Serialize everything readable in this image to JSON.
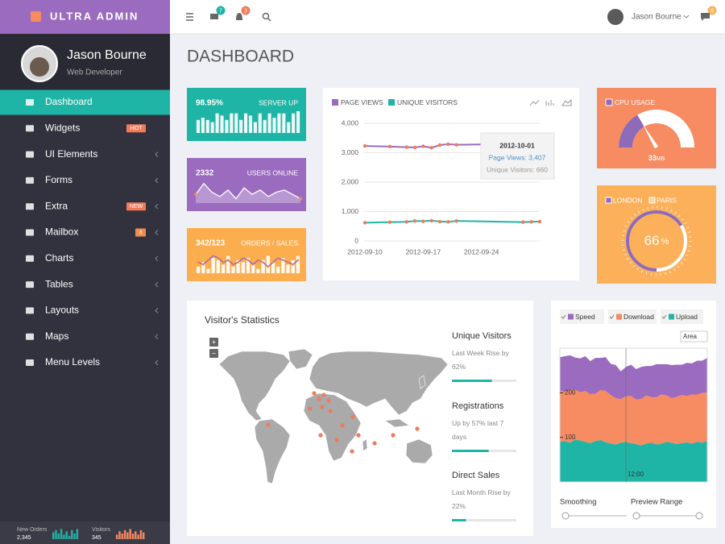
{
  "brand": "ULTRA ADMIN",
  "topbar": {
    "mail_badge": "7",
    "bell_badge": "3",
    "user": "Jason Bourne",
    "chat_badge": "8"
  },
  "profile": {
    "name": "Jason Bourne",
    "role": "Web Developer"
  },
  "menu": [
    {
      "label": "Dashboard",
      "active": true
    },
    {
      "label": "Widgets",
      "badge": "HOT"
    },
    {
      "label": "UI Elements",
      "submenu": true
    },
    {
      "label": "Forms",
      "submenu": true
    },
    {
      "label": "Extra",
      "badge": "NEW",
      "submenu": true
    },
    {
      "label": "Mailbox",
      "badge": "4",
      "submenu": true
    },
    {
      "label": "Charts",
      "submenu": true
    },
    {
      "label": "Tables",
      "submenu": true
    },
    {
      "label": "Layouts",
      "submenu": true
    },
    {
      "label": "Maps",
      "submenu": true
    },
    {
      "label": "Menu Levels",
      "submenu": true
    }
  ],
  "sidebar_footer": [
    {
      "label": "New Orders",
      "value": "2,345",
      "color": "#1fb5a6",
      "ylim": [
        0,
        10
      ],
      "bars": [
        6,
        8,
        5,
        9,
        4,
        7,
        3,
        8,
        5,
        9
      ]
    },
    {
      "label": "Visitors",
      "value": "345",
      "color": "#f78b62",
      "ylim": [
        0,
        10
      ],
      "bars": [
        4,
        7,
        5,
        8,
        6,
        9,
        5,
        7,
        4,
        8,
        6
      ]
    }
  ],
  "page_title": "DASHBOARD",
  "tiles": [
    {
      "value": "98.95%",
      "label": "SERVER UP",
      "color": "#1fb5a6",
      "spark": {
        "type": "bar",
        "ylim": [
          0,
          10
        ],
        "values": [
          6,
          7,
          6,
          5,
          9,
          8,
          6,
          9,
          9,
          6,
          9,
          8,
          5,
          9,
          6,
          9,
          7,
          9,
          9,
          5,
          9,
          10
        ]
      }
    },
    {
      "value": "2332",
      "label": "USERS ONLINE",
      "color": "#9b6bbf",
      "spark": {
        "type": "area",
        "ylim": [
          0,
          10
        ],
        "values": [
          4,
          9,
          5,
          3,
          6,
          2,
          7,
          4,
          6,
          3,
          5,
          6,
          4,
          2
        ]
      }
    },
    {
      "value": "342/123",
      "label": "ORDERS / SALES",
      "color": "#fcae4f",
      "spark": {
        "type": "bar-line",
        "ylim": [
          0,
          10
        ],
        "line_color": "#8e6bb8",
        "values": [
          3,
          5,
          2,
          7,
          6,
          4,
          8,
          3,
          6,
          5,
          7,
          4,
          2,
          6,
          8,
          5,
          3,
          7,
          4,
          6,
          8
        ],
        "line": [
          5,
          4,
          6,
          8,
          7,
          5,
          6,
          4,
          5,
          7,
          6,
          4,
          6,
          5,
          3,
          5,
          7,
          6,
          5,
          4,
          6
        ]
      }
    }
  ],
  "traffic_chart": {
    "type": "line",
    "x": [
      "2012-09-10",
      "2012-09-13",
      "2012-09-15",
      "2012-09-16",
      "2012-09-17",
      "2012-09-18",
      "2012-09-19",
      "2012-09-20",
      "2012-09-21",
      "2012-09-29",
      "2012-09-30",
      "2012-10-01"
    ],
    "series": [
      {
        "name": "PAGE VIEWS",
        "color": "#9b6bbf",
        "values": [
          3230,
          3210,
          3190,
          3180,
          3220,
          3170,
          3260,
          3290,
          3270,
          3300,
          3350,
          3407
        ]
      },
      {
        "name": "UNIQUE VISITORS",
        "color": "#1fb5a6",
        "values": [
          620,
          640,
          650,
          680,
          670,
          690,
          660,
          650,
          680,
          640,
          650,
          660
        ]
      }
    ],
    "point_color": "#f07b5b",
    "xlim": [
      "2012-09-10",
      "2012-10-01"
    ],
    "xticks": [
      "2012-09-10",
      "2012-09-17",
      "2012-09-24"
    ],
    "ylim": [
      0,
      4000
    ],
    "yticks": [
      0,
      {
        "value": 1000,
        "label": "1,000"
      },
      {
        "value": 2000,
        "label": "2,000"
      },
      {
        "value": 3000,
        "label": "3,000"
      },
      {
        "value": 4000,
        "label": "4,000"
      }
    ],
    "grid": true,
    "tooltip": {
      "title": "2012-10-01",
      "lines": [
        "Page Views: 3,407",
        "Unique Visitors: 660"
      ]
    }
  },
  "cpu": {
    "legend": "CPU USAGE",
    "value": 33,
    "unit": "MB",
    "range": [
      0,
      100
    ],
    "color": "#8e6bb8"
  },
  "ratio": {
    "legend": [
      "LONDON",
      "PARIS"
    ],
    "value": 66,
    "unit": "%",
    "range": [
      0,
      100
    ],
    "color": "#8e6bb8"
  },
  "visitors": {
    "title": "Visitor's Statistics",
    "zoom": [
      "+",
      "−"
    ],
    "range": [
      0,
      100
    ],
    "stats": [
      {
        "title": "Unique Visitors",
        "text": "Last Week Rise by 62%",
        "value": 62
      },
      {
        "title": "Registrations",
        "text": "Up by 57% last 7 days",
        "value": 57
      },
      {
        "title": "Direct Sales",
        "text": "Last Month Rise by 22%",
        "value": 22
      }
    ]
  },
  "speed_chart": {
    "type": "area",
    "stacked": true,
    "series": [
      {
        "name": "Speed",
        "color": "#9b6bbf",
        "values": [
          75,
          80,
          78,
          72,
          76,
          78,
          74,
          80,
          72,
          76,
          70,
          74,
          62,
          66,
          70,
          68,
          72,
          66,
          70,
          74,
          68,
          70,
          74,
          72,
          68,
          74,
          70,
          76,
          72,
          78
        ]
      },
      {
        "name": "Download",
        "color": "#f78b62",
        "values": [
          115,
          110,
          118,
          112,
          108,
          114,
          110,
          106,
          112,
          115,
          109,
          104,
          98,
          102,
          106,
          100,
          104,
          108,
          102,
          106,
          110,
          104,
          100,
          106,
          108,
          104,
          110,
          106,
          112,
          108
        ]
      },
      {
        "name": "Upload",
        "color": "#1fb5a6",
        "values": [
          90,
          92,
          88,
          95,
          93,
          90,
          87,
          92,
          94,
          89,
          86,
          84,
          88,
          90,
          87,
          85,
          82,
          86,
          88,
          84,
          86,
          90,
          88,
          85,
          87,
          89,
          86,
          90,
          88,
          92
        ]
      }
    ],
    "ylim": [
      0,
      300
    ],
    "yticks": [
      100,
      200
    ],
    "xtick": "12:00",
    "mode": "Area",
    "controls": [
      "Smoothing",
      "Preview Range"
    ]
  }
}
